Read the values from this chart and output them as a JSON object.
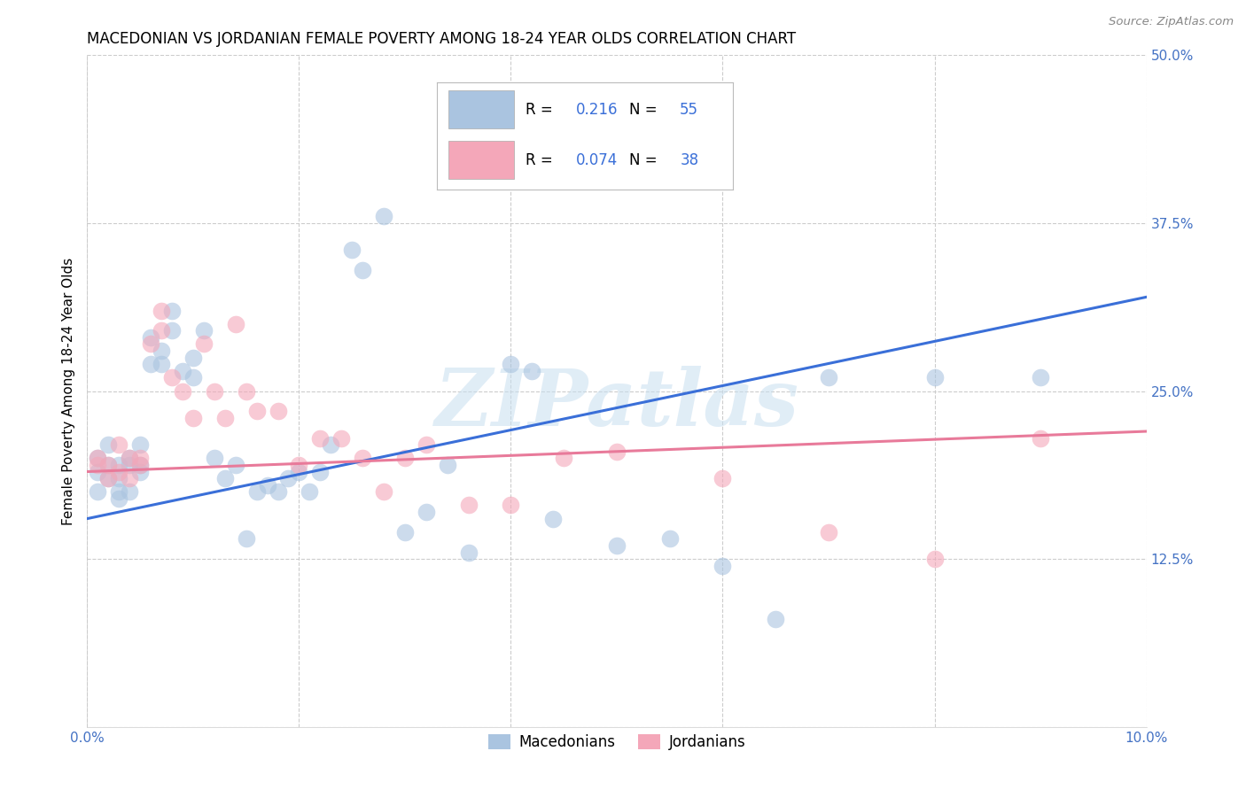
{
  "title": "MACEDONIAN VS JORDANIAN FEMALE POVERTY AMONG 18-24 YEAR OLDS CORRELATION CHART",
  "source": "Source: ZipAtlas.com",
  "ylabel": "Female Poverty Among 18-24 Year Olds",
  "xlim": [
    0.0,
    0.1
  ],
  "ylim": [
    0.0,
    0.5
  ],
  "xticks": [
    0.0,
    0.02,
    0.04,
    0.06,
    0.08,
    0.1
  ],
  "xticklabels": [
    "0.0%",
    "",
    "",
    "",
    "",
    "10.0%"
  ],
  "yticks": [
    0.0,
    0.125,
    0.25,
    0.375,
    0.5
  ],
  "yticklabels": [
    "",
    "12.5%",
    "25.0%",
    "37.5%",
    "50.0%"
  ],
  "grid_color": "#cccccc",
  "background_color": "#ffffff",
  "mac_color": "#aac4e0",
  "jor_color": "#f4a7b9",
  "mac_line_color": "#3a6fd8",
  "jor_line_color": "#e87a9a",
  "mac_R": 0.216,
  "mac_N": 55,
  "jor_R": 0.074,
  "jor_N": 38,
  "legend_label1": "Macedonians",
  "legend_label2": "Jordanians",
  "watermark": "ZIPatlas",
  "mac_line_x0": 0.0,
  "mac_line_y0": 0.155,
  "mac_line_x1": 0.1,
  "mac_line_y1": 0.32,
  "jor_line_x0": 0.0,
  "jor_line_y0": 0.19,
  "jor_line_x1": 0.1,
  "jor_line_y1": 0.22,
  "mac_x": [
    0.001,
    0.001,
    0.001,
    0.002,
    0.002,
    0.002,
    0.003,
    0.003,
    0.003,
    0.003,
    0.004,
    0.004,
    0.004,
    0.005,
    0.005,
    0.005,
    0.006,
    0.006,
    0.007,
    0.007,
    0.008,
    0.008,
    0.009,
    0.01,
    0.01,
    0.011,
    0.012,
    0.013,
    0.014,
    0.015,
    0.016,
    0.017,
    0.018,
    0.019,
    0.02,
    0.021,
    0.022,
    0.023,
    0.025,
    0.026,
    0.028,
    0.03,
    0.032,
    0.034,
    0.036,
    0.04,
    0.042,
    0.044,
    0.05,
    0.055,
    0.06,
    0.065,
    0.07,
    0.08,
    0.09
  ],
  "mac_y": [
    0.19,
    0.2,
    0.175,
    0.195,
    0.185,
    0.21,
    0.175,
    0.17,
    0.195,
    0.185,
    0.2,
    0.195,
    0.175,
    0.195,
    0.19,
    0.21,
    0.27,
    0.29,
    0.28,
    0.27,
    0.295,
    0.31,
    0.265,
    0.26,
    0.275,
    0.295,
    0.2,
    0.185,
    0.195,
    0.14,
    0.175,
    0.18,
    0.175,
    0.185,
    0.19,
    0.175,
    0.19,
    0.21,
    0.355,
    0.34,
    0.38,
    0.145,
    0.16,
    0.195,
    0.13,
    0.27,
    0.265,
    0.155,
    0.135,
    0.14,
    0.12,
    0.08,
    0.26,
    0.26,
    0.26
  ],
  "jor_x": [
    0.001,
    0.001,
    0.002,
    0.002,
    0.003,
    0.003,
    0.004,
    0.004,
    0.005,
    0.005,
    0.006,
    0.007,
    0.007,
    0.008,
    0.009,
    0.01,
    0.011,
    0.012,
    0.013,
    0.014,
    0.015,
    0.016,
    0.018,
    0.02,
    0.022,
    0.024,
    0.026,
    0.028,
    0.03,
    0.032,
    0.036,
    0.04,
    0.045,
    0.05,
    0.06,
    0.07,
    0.08,
    0.09
  ],
  "jor_y": [
    0.195,
    0.2,
    0.185,
    0.195,
    0.19,
    0.21,
    0.2,
    0.185,
    0.195,
    0.2,
    0.285,
    0.295,
    0.31,
    0.26,
    0.25,
    0.23,
    0.285,
    0.25,
    0.23,
    0.3,
    0.25,
    0.235,
    0.235,
    0.195,
    0.215,
    0.215,
    0.2,
    0.175,
    0.2,
    0.21,
    0.165,
    0.165,
    0.2,
    0.205,
    0.185,
    0.145,
    0.125,
    0.215
  ]
}
